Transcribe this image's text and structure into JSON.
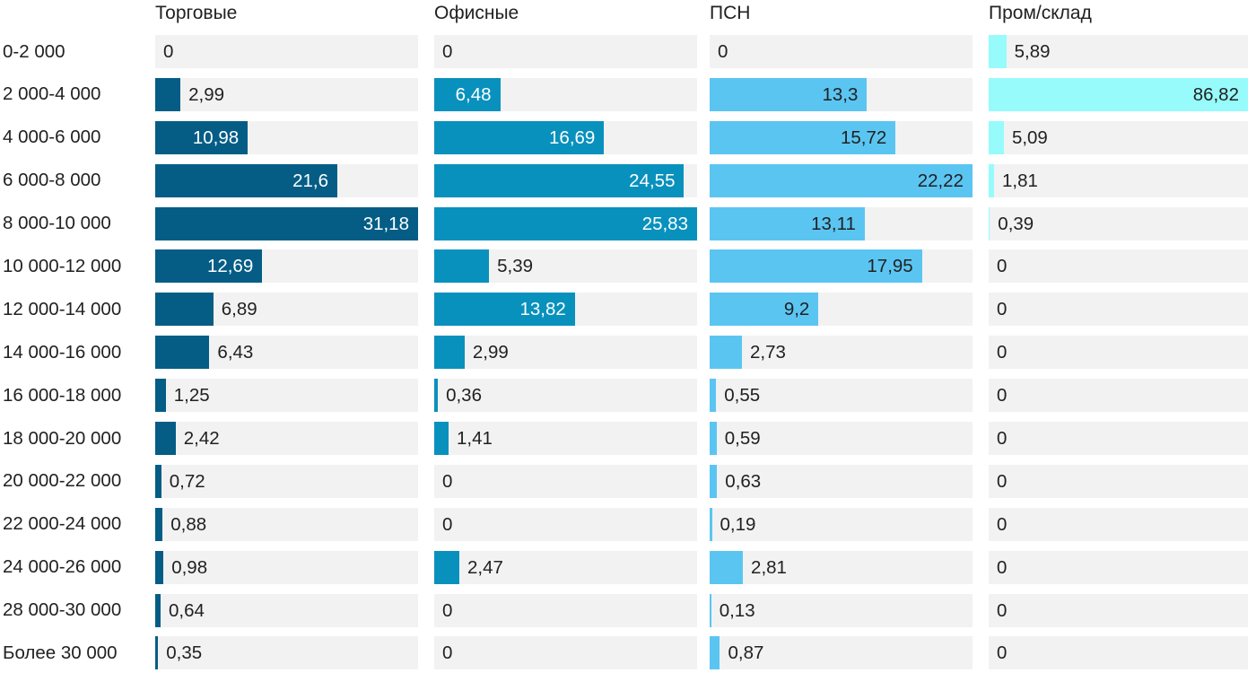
{
  "chart_data": {
    "type": "bar",
    "orientation": "horizontal",
    "layout": "small-multiples-per-column-scaled-to-column-max",
    "grid": "off",
    "legend": "column-headers-on-top",
    "number_format": "comma-decimal",
    "track_color": "#f2f2f2",
    "text_color": "#212121",
    "title": "",
    "xlabel": "",
    "ylabel": "",
    "categories": [
      "0-2 000",
      "2 000-4 000",
      "4 000-6 000",
      "6 000-8 000",
      "8 000-10 000",
      "10 000-12 000",
      "12 000-14 000",
      "14 000-16 000",
      "16 000-18 000",
      "18 000-20 000",
      "20 000-22 000",
      "22 000-24 000",
      "24 000-26 000",
      "28 000-30 000",
      "Более 30 000"
    ],
    "series": [
      {
        "name": "Торговые",
        "color": "#055d86",
        "inside_label_color": "#ffffff",
        "values": [
          0,
          2.99,
          10.98,
          21.6,
          31.18,
          12.69,
          6.89,
          6.43,
          1.25,
          2.42,
          0.72,
          0.88,
          0.98,
          0.64,
          0.35
        ],
        "labels": [
          "0",
          "2,99",
          "10,98",
          "21,6",
          "31,18",
          "12,69",
          "6,89",
          "6,43",
          "1,25",
          "2,42",
          "0,72",
          "0,88",
          "0,98",
          "0,64",
          "0,35"
        ]
      },
      {
        "name": "Офисные",
        "color": "#0991bd",
        "inside_label_color": "#ffffff",
        "values": [
          0,
          6.48,
          16.69,
          24.55,
          25.83,
          5.39,
          13.82,
          2.99,
          0.36,
          1.41,
          0,
          0,
          2.47,
          0,
          0
        ],
        "labels": [
          "0",
          "6,48",
          "16,69",
          "24,55",
          "25,83",
          "5,39",
          "13,82",
          "2,99",
          "0,36",
          "1,41",
          "0",
          "0",
          "2,47",
          "0",
          "0"
        ]
      },
      {
        "name": "ПСН",
        "color": "#5bc5f2",
        "inside_label_color": "#212121",
        "values": [
          0,
          13.3,
          15.72,
          22.22,
          13.11,
          17.95,
          9.2,
          2.73,
          0.55,
          0.59,
          0.63,
          0.19,
          2.81,
          0.13,
          0.87
        ],
        "labels": [
          "0",
          "13,3",
          "15,72",
          "22,22",
          "13,11",
          "17,95",
          "9,2",
          "2,73",
          "0,55",
          "0,59",
          "0,63",
          "0,19",
          "2,81",
          "0,13",
          "0,87"
        ]
      },
      {
        "name": "Пром/склад",
        "color": "#97fbfb",
        "inside_label_color": "#212121",
        "values": [
          5.89,
          86.82,
          5.09,
          1.81,
          0.39,
          0,
          0,
          0,
          0,
          0,
          0,
          0,
          0,
          0,
          0
        ],
        "labels": [
          "5,89",
          "86,82",
          "5,09",
          "1,81",
          "0,39",
          "0",
          "0",
          "0",
          "0",
          "0",
          "0",
          "0",
          "0",
          "0",
          "0"
        ]
      }
    ]
  }
}
